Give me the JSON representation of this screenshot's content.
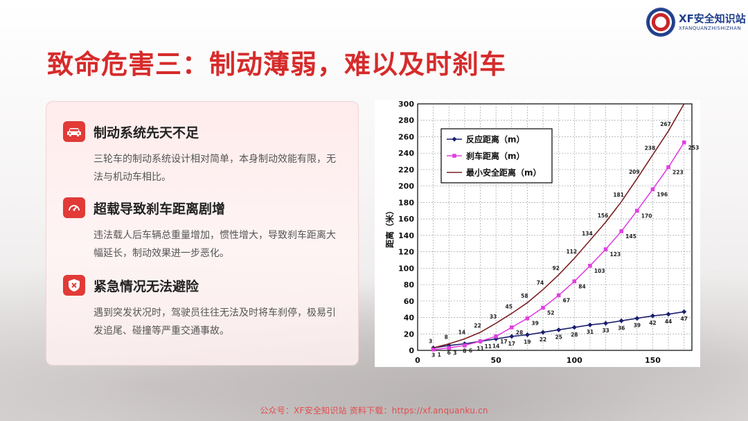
{
  "brand": {
    "name": "XF安全知识站",
    "sub": "XFANQUANZHISHIZHAN"
  },
  "title": "致命危害三：制动薄弱，难以及时刹车",
  "points": [
    {
      "icon": "car-icon",
      "title": "制动系统先天不足",
      "body": "三轮车的制动系统设计相对简单，本身制动效能有限，无法与机动车相比。"
    },
    {
      "icon": "gauge-icon",
      "title": "超载导致刹车距离剧增",
      "body": "违法载人后车辆总重量增加，惯性增大，导致刹车距离大幅延长，制动效果进一步恶化。"
    },
    {
      "icon": "shield-x-icon",
      "title": "紧急情况无法避险",
      "body": "遇到突发状况时，驾驶员往往无法及时将车刹停，极易引发追尾、碰撞等严重交通事故。"
    }
  ],
  "footer": "公众号：XF安全知识站 资料下载：https://xf.anquanku.cn",
  "colors": {
    "accent": "#d62b2b",
    "icon_bg": "#e13a37",
    "reaction": "#1b1f6e",
    "braking": "#e040e0",
    "min_safe": "#7a1f1f"
  },
  "chart_data": {
    "type": "line",
    "ylabel": "距离（米）",
    "xlabel": "",
    "xlim": [
      0,
      175
    ],
    "ylim": [
      0,
      300
    ],
    "xticks": [
      0,
      50,
      100,
      150
    ],
    "yticks": [
      0,
      20,
      40,
      60,
      80,
      100,
      120,
      140,
      160,
      180,
      200,
      220,
      240,
      260,
      280,
      300
    ],
    "grid": true,
    "legend_position": "top-left",
    "x": [
      10,
      20,
      30,
      40,
      50,
      60,
      70,
      80,
      90,
      100,
      110,
      120,
      130,
      140,
      150,
      160,
      170
    ],
    "series": [
      {
        "name": "反应距离（m）",
        "color": "#1b1f6e",
        "marker": "diamond",
        "label_pos": "below",
        "values": [
          3,
          6,
          8,
          11,
          14,
          17,
          19,
          22,
          25,
          28,
          31,
          33,
          36,
          39,
          42,
          44,
          47
        ]
      },
      {
        "name": "刹车距离（m）",
        "color": "#e040e0",
        "marker": "square",
        "label_pos": "right",
        "values": [
          1,
          3,
          6,
          11,
          17,
          28,
          39,
          52,
          67,
          84,
          103,
          123,
          145,
          170,
          196,
          223,
          253
        ]
      },
      {
        "name": "最小安全距离（m）",
        "color": "#7a1f1f",
        "marker": "none",
        "label_pos": "above",
        "values": [
          3,
          8,
          14,
          22,
          33,
          45,
          58,
          74,
          92,
          112,
          134,
          156,
          181,
          209,
          238,
          267,
          300
        ]
      }
    ]
  }
}
